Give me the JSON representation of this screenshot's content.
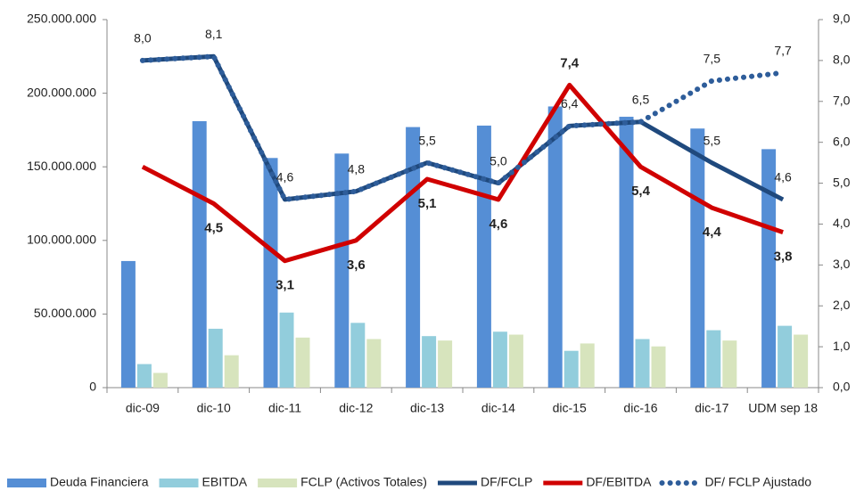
{
  "chart_data": {
    "type": "bar",
    "categories": [
      "dic-09",
      "dic-10",
      "dic-11",
      "dic-12",
      "dic-13",
      "dic-14",
      "dic-15",
      "dic-16",
      "dic-17",
      "UDM sep 18"
    ],
    "ylim": [
      0,
      250000000
    ],
    "yticks": [
      0,
      {
        "value": 50000000,
        "label": "50.000.000"
      },
      {
        "value": 100000000,
        "label": "100.000.000"
      },
      {
        "value": 150000000,
        "label": "150.000.000"
      },
      {
        "value": 200000000,
        "label": "200.000.000"
      },
      {
        "value": 250000000,
        "label": "250.000.000"
      }
    ],
    "y2lim": [
      0,
      9
    ],
    "y2ticks": [
      {
        "value": 0,
        "label": "0,0"
      },
      {
        "value": 1,
        "label": "1,0"
      },
      {
        "value": 2,
        "label": "2,0"
      },
      {
        "value": 3,
        "label": "3,0"
      },
      {
        "value": 4,
        "label": "4,0"
      },
      {
        "value": 5,
        "label": "5,0"
      },
      {
        "value": 6,
        "label": "6,0"
      },
      {
        "value": 7,
        "label": "7,0"
      },
      {
        "value": 8,
        "label": "8,0"
      },
      {
        "value": 9,
        "label": "9,0"
      }
    ],
    "series": [
      {
        "name": "Deuda Financiera",
        "type": "bar",
        "color": "#558ed5",
        "values": [
          86000000,
          181000000,
          156000000,
          159000000,
          177000000,
          178000000,
          191000000,
          184000000,
          176000000,
          162000000
        ]
      },
      {
        "name": "EBITDA",
        "type": "bar",
        "color": "#92cddc",
        "values": [
          16000000,
          40000000,
          51000000,
          44000000,
          35000000,
          38000000,
          25000000,
          33000000,
          39000000,
          42000000
        ]
      },
      {
        "name": "FCLP (Activos Totales)",
        "type": "bar",
        "color": "#d7e4bd",
        "values": [
          10000000,
          22000000,
          34000000,
          33000000,
          32000000,
          36000000,
          30000000,
          28000000,
          32000000,
          36000000
        ]
      },
      {
        "name": "DF/FCLP",
        "type": "line",
        "axis": "y2",
        "color": "#1f497d",
        "values": [
          8.0,
          8.1,
          4.6,
          4.8,
          5.5,
          5.0,
          6.4,
          6.5,
          5.5,
          4.6
        ],
        "value_labels": [
          "8,0",
          "8,1",
          "4,6",
          "4,8",
          "5,5",
          "5,0",
          "6,4",
          "6,5",
          "5,5",
          "4,6"
        ]
      },
      {
        "name": "DF/EBITDA",
        "type": "line",
        "axis": "y2",
        "color": "#d00000",
        "values": [
          5.4,
          4.5,
          3.1,
          3.6,
          5.1,
          4.6,
          7.4,
          5.4,
          4.4,
          3.8
        ],
        "value_labels": [
          null,
          "4,5",
          "3,1",
          "3,6",
          "5,1",
          "4,6",
          "7,4",
          "5,4",
          "4,4",
          "3,8"
        ]
      },
      {
        "name": "DF/ FCLP Ajustado",
        "type": "line",
        "axis": "y2",
        "color": "#2e5d9a",
        "dash": "dotted",
        "values": [
          8.0,
          8.1,
          4.6,
          4.8,
          5.5,
          5.0,
          6.4,
          6.5,
          7.5,
          7.7
        ],
        "value_labels": [
          null,
          null,
          null,
          null,
          null,
          null,
          null,
          null,
          "7,5",
          "7,7"
        ]
      }
    ]
  }
}
